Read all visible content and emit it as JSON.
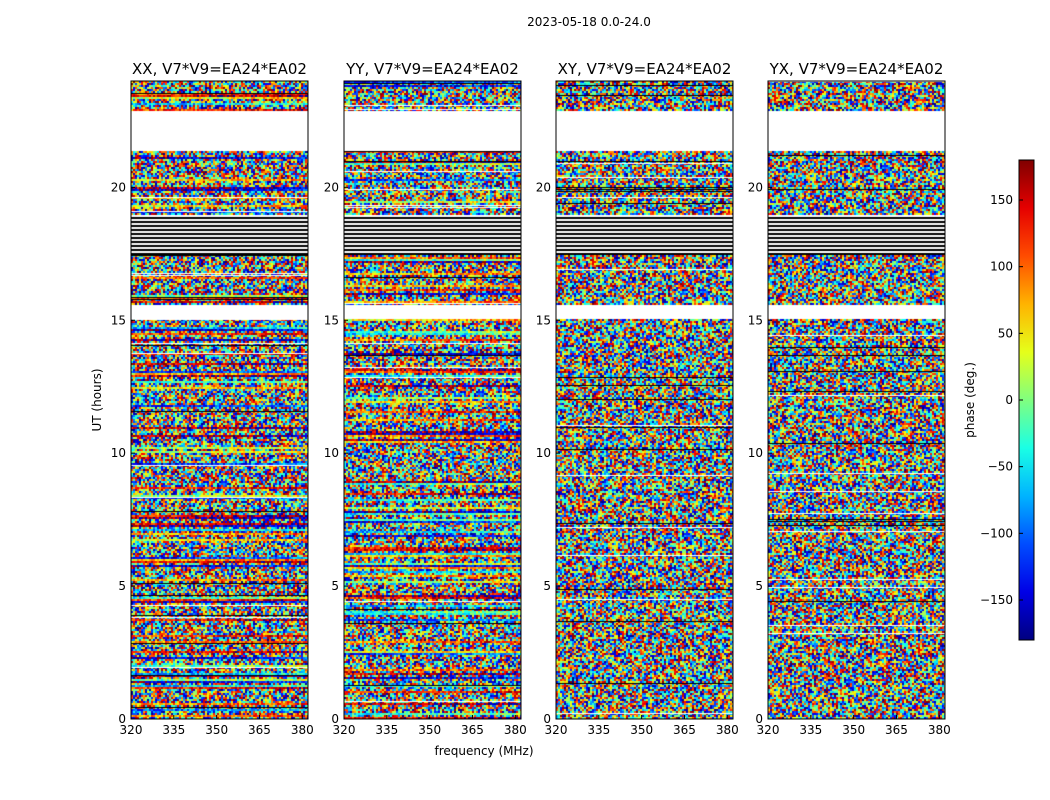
{
  "chart_data": {
    "type": "heatmap",
    "suptitle": "2023-05-18 0.0-24.0",
    "xlabel": "frequency (MHz)",
    "ylabel": "UT (hours)",
    "xlim": [
      320,
      382
    ],
    "ylim": [
      0,
      24
    ],
    "xticks": [
      320,
      335,
      350,
      365,
      380
    ],
    "yticks": [
      0,
      5,
      10,
      15,
      20
    ],
    "panels": [
      {
        "title": "XX, V7*V9=EA24*EA02"
      },
      {
        "title": "YY, V7*V9=EA24*EA02"
      },
      {
        "title": "XY, V7*V9=EA24*EA02"
      },
      {
        "title": "YX, V7*V9=EA24*EA02"
      }
    ],
    "colorbar": {
      "label": "phase (deg.)",
      "range": [
        -180,
        180
      ],
      "ticks": [
        150,
        100,
        50,
        0,
        -50,
        -100,
        -150
      ],
      "colormap": "jet",
      "ticklabels": [
        "150",
        "100",
        "50",
        "0",
        "−50",
        "−100",
        "−150"
      ]
    },
    "gaps_hours": [
      [
        21.4,
        22.9
      ],
      [
        15.1,
        15.6
      ]
    ],
    "flagged_hours": [
      [
        17.5,
        19.0
      ]
    ]
  }
}
